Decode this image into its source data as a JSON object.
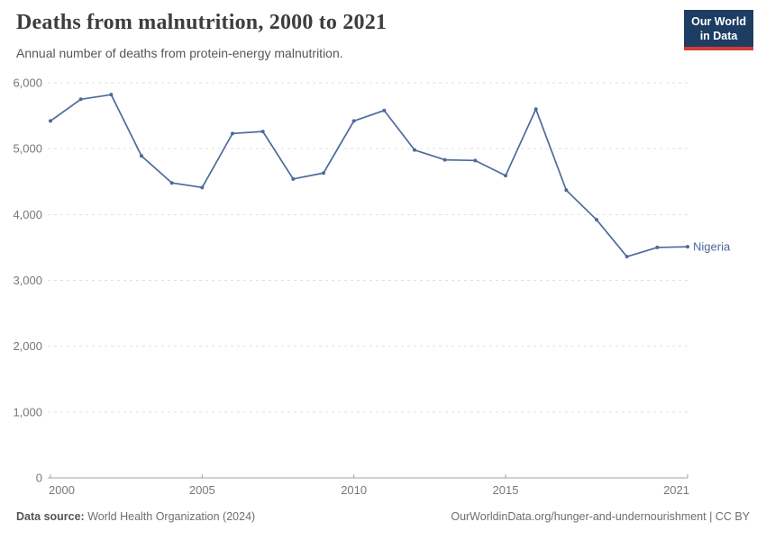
{
  "header": {
    "title": "Deaths from malnutrition, 2000 to 2021",
    "subtitle": "Annual number of deaths from protein-energy malnutrition.",
    "logo": {
      "line1": "Our World",
      "line2": "in Data",
      "bg_color": "#1d3d63",
      "accent_color": "#d73c32"
    }
  },
  "footer": {
    "source_label": "Data source:",
    "source_text": " World Health Organization (2024)",
    "link_text": "OurWorldinData.org/hunger-and-undernourishment | CC BY"
  },
  "chart_data": {
    "type": "line",
    "title": "Deaths from malnutrition, 2000 to 2021",
    "subtitle": "Annual number of deaths from protein-energy malnutrition.",
    "x": [
      2000,
      2001,
      2002,
      2003,
      2004,
      2005,
      2006,
      2007,
      2008,
      2009,
      2010,
      2011,
      2012,
      2013,
      2014,
      2015,
      2016,
      2017,
      2018,
      2019,
      2020,
      2021
    ],
    "series": [
      {
        "name": "Nigeria",
        "end_label": "Nigeria",
        "color": "#4c6a9c",
        "values": [
          5420,
          5750,
          5820,
          4890,
          4480,
          4410,
          5230,
          5260,
          4540,
          4630,
          5420,
          5580,
          4980,
          4830,
          4820,
          4590,
          5600,
          4370,
          3920,
          3360,
          3500,
          3510
        ]
      }
    ],
    "xlabel": "",
    "ylabel": "",
    "xlim": [
      2000,
      2021
    ],
    "ylim": [
      0,
      6000
    ],
    "yticks": [
      {
        "value": 0,
        "label": "0"
      },
      {
        "value": 1000,
        "label": "1,000"
      },
      {
        "value": 2000,
        "label": "2,000"
      },
      {
        "value": 3000,
        "label": "3,000"
      },
      {
        "value": 4000,
        "label": "4,000"
      },
      {
        "value": 5000,
        "label": "5,000"
      },
      {
        "value": 6000,
        "label": "6,000"
      }
    ],
    "xticks": [
      {
        "value": 2000,
        "label": "2000"
      },
      {
        "value": 2005,
        "label": "2005"
      },
      {
        "value": 2010,
        "label": "2010"
      },
      {
        "value": 2015,
        "label": "2015"
      },
      {
        "value": 2021,
        "label": "2021"
      }
    ],
    "grid": "horizontal-dashed",
    "legend": "line-end-label",
    "colors": {
      "grid": "#e0e0e0",
      "axis": "#a3a3a3",
      "tick_text": "#787878"
    }
  }
}
